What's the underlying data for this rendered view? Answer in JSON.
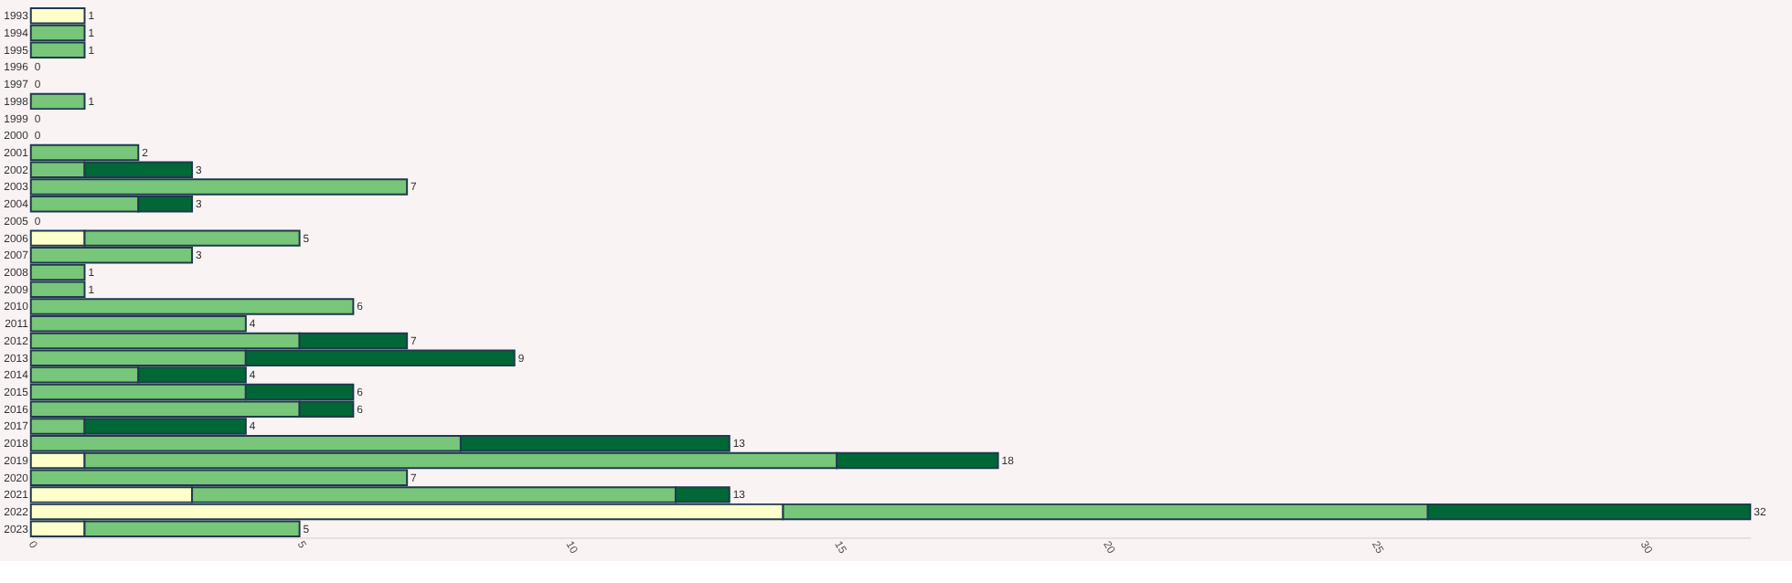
{
  "chart_data": {
    "type": "bar",
    "orientation": "horizontal",
    "stacked": true,
    "categories": [
      "1993",
      "1994",
      "1995",
      "1996",
      "1997",
      "1998",
      "1999",
      "2000",
      "2001",
      "2002",
      "2003",
      "2004",
      "2005",
      "2006",
      "2007",
      "2008",
      "2009",
      "2010",
      "2011",
      "2012",
      "2013",
      "2014",
      "2015",
      "2016",
      "2017",
      "2018",
      "2019",
      "2020",
      "2021",
      "2022",
      "2023"
    ],
    "series": [
      {
        "color": "#ffffcc",
        "values": [
          1,
          0,
          0,
          0,
          0,
          0,
          0,
          0,
          0,
          0,
          0,
          0,
          0,
          1,
          0,
          0,
          0,
          0,
          0,
          0,
          0,
          0,
          0,
          0,
          0,
          0,
          1,
          0,
          3,
          14,
          1
        ]
      },
      {
        "color": "#78c679",
        "values": [
          0,
          1,
          1,
          0,
          0,
          1,
          0,
          0,
          2,
          1,
          7,
          2,
          0,
          4,
          3,
          1,
          1,
          6,
          4,
          5,
          4,
          2,
          4,
          5,
          1,
          8,
          14,
          7,
          9,
          12,
          4
        ]
      },
      {
        "color": "#006837",
        "values": [
          0,
          0,
          0,
          0,
          0,
          0,
          0,
          0,
          0,
          2,
          0,
          1,
          0,
          0,
          0,
          0,
          0,
          0,
          0,
          2,
          5,
          2,
          2,
          1,
          3,
          5,
          3,
          0,
          1,
          6,
          0
        ]
      }
    ],
    "totals": [
      "1",
      "1",
      "1",
      "0",
      "0",
      "1",
      "0",
      "0",
      "2",
      "3",
      "7",
      "3",
      "0",
      "5",
      "3",
      "1",
      "1",
      "6",
      "4",
      "7",
      "9",
      "4",
      "6",
      "6",
      "4",
      "13",
      "18",
      "7",
      "13",
      "32",
      "5"
    ],
    "xlim": [
      0,
      32
    ],
    "xticks": [
      0,
      5,
      10,
      15,
      20,
      25,
      30
    ],
    "grid": false,
    "legend": false
  }
}
